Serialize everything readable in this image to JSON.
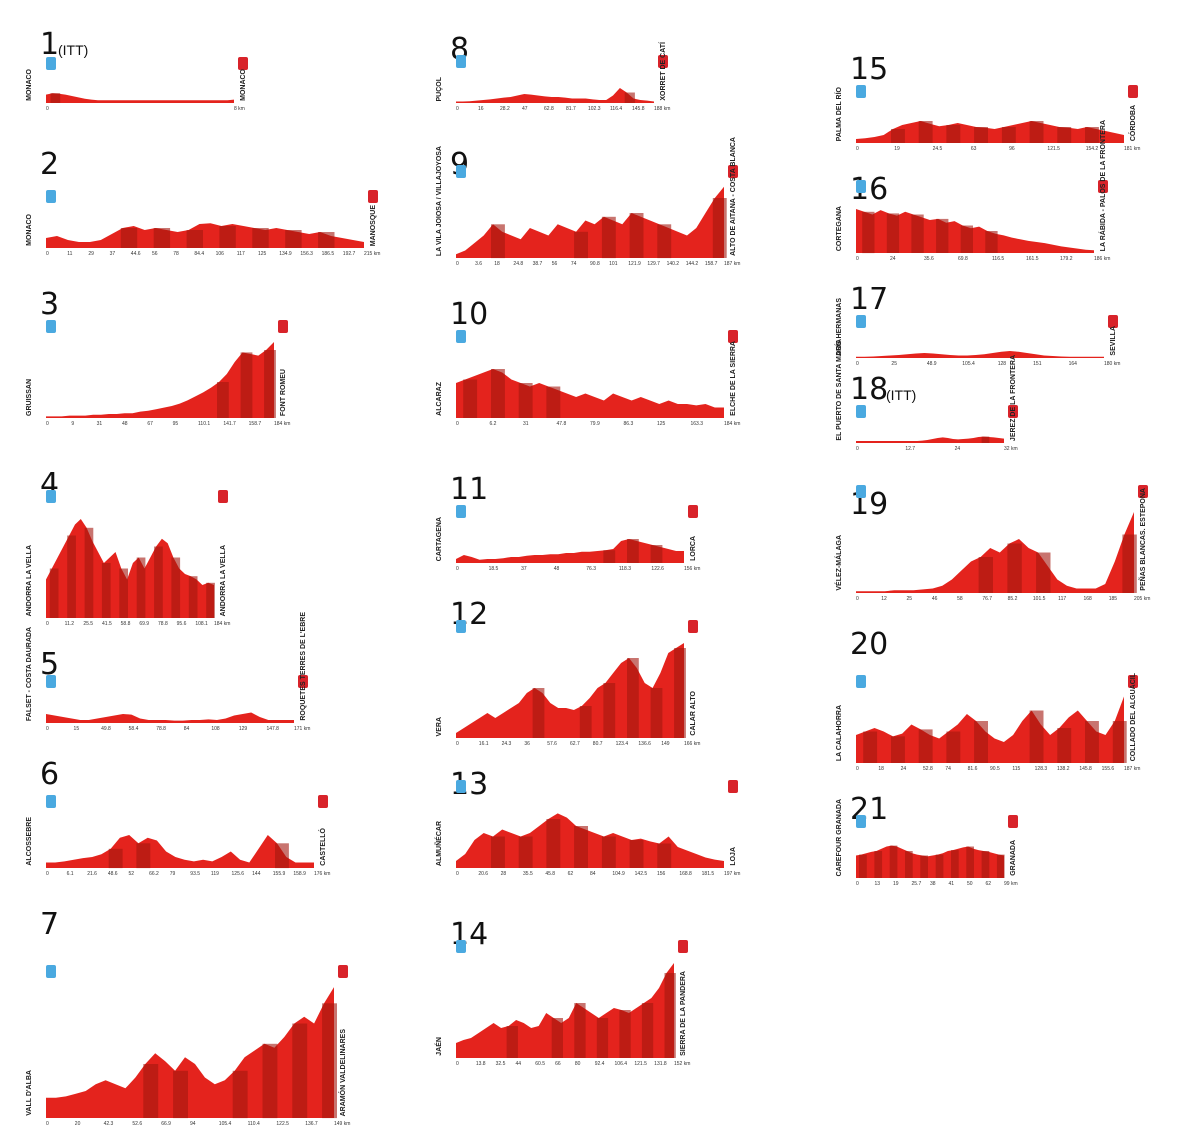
{
  "colors": {
    "fill": "#e4231d",
    "dark": "#a3170f",
    "start": "#4aa9e0",
    "finish": "#d8232a"
  },
  "stages": [
    {
      "num": "1",
      "itt": "(ITT)",
      "start": "MONACO",
      "finish": "MONACO",
      "kms": [
        "0",
        "8 km"
      ],
      "h": [
        0.3,
        0.35,
        0.33,
        0.3,
        0.25,
        0.2,
        0.15,
        0.12,
        0.1,
        0.1,
        0.1,
        0.1,
        0.1,
        0.1,
        0.1,
        0.1,
        0.1,
        0.1,
        0.1,
        0.1,
        0.1,
        0.1,
        0.1,
        0.1,
        0.1,
        0.1,
        0.1,
        0.1,
        0.1,
        0.12
      ]
    },
    {
      "num": "2",
      "start": "MONACO",
      "finish": "MANOSQUE",
      "kms": [
        "0",
        "11",
        "29",
        "37",
        "44.6",
        "56",
        "78",
        "84.4",
        "106",
        "117",
        "125",
        "134.9",
        "156.3",
        "186.5",
        "192.7",
        "215 km"
      ],
      "h": [
        0.25,
        0.3,
        0.2,
        0.15,
        0.15,
        0.2,
        0.35,
        0.5,
        0.55,
        0.45,
        0.5,
        0.45,
        0.4,
        0.45,
        0.6,
        0.62,
        0.55,
        0.6,
        0.55,
        0.5,
        0.45,
        0.5,
        0.45,
        0.4,
        0.35,
        0.4,
        0.3,
        0.25,
        0.2,
        0.15
      ]
    },
    {
      "num": "3",
      "start": "GRUISSAN",
      "finish": "FONT ROMEU",
      "kms": [
        "0",
        "9",
        "31",
        "48",
        "67",
        "95",
        "110.1",
        "141.7",
        "158.7",
        "184 km"
      ],
      "h": [
        0.02,
        0.02,
        0.02,
        0.03,
        0.03,
        0.03,
        0.04,
        0.04,
        0.05,
        0.05,
        0.06,
        0.06,
        0.08,
        0.09,
        0.11,
        0.13,
        0.15,
        0.18,
        0.22,
        0.27,
        0.32,
        0.38,
        0.45,
        0.55,
        0.7,
        0.82,
        0.8,
        0.78,
        0.85,
        0.95
      ]
    },
    {
      "num": "4",
      "start": "ANDORRA LA VELLA",
      "finish": "ANDORRA LA VELLA",
      "kms": [
        "0",
        "11.2",
        "25.5",
        "41.5",
        "58.8",
        "69.9",
        "78.8",
        "95.6",
        "108.1",
        "184 km"
      ],
      "h": [
        0.35,
        0.45,
        0.55,
        0.65,
        0.75,
        0.85,
        0.9,
        0.82,
        0.7,
        0.6,
        0.5,
        0.55,
        0.6,
        0.45,
        0.35,
        0.5,
        0.55,
        0.45,
        0.55,
        0.65,
        0.72,
        0.68,
        0.55,
        0.45,
        0.4,
        0.38,
        0.35,
        0.3,
        0.32,
        0.3
      ]
    },
    {
      "num": "5",
      "start": "FALSET - COSTA DAURADA",
      "finish": "ROQUETES TERRES DE L'EBRE",
      "kms": [
        "0",
        "15",
        "49.8",
        "58.4",
        "78.8",
        "84",
        "108",
        "129",
        "147.8",
        "171 km"
      ],
      "h": [
        0.3,
        0.25,
        0.2,
        0.15,
        0.1,
        0.1,
        0.15,
        0.2,
        0.25,
        0.3,
        0.28,
        0.15,
        0.1,
        0.1,
        0.1,
        0.08,
        0.08,
        0.1,
        0.1,
        0.12,
        0.1,
        0.15,
        0.25,
        0.3,
        0.35,
        0.2,
        0.1,
        0.1,
        0.1,
        0.1
      ]
    },
    {
      "num": "6",
      "start": "ALCOSSEBRE",
      "finish": "CASTELLÓ",
      "kms": [
        "0",
        "6.1",
        "21.6",
        "48.6",
        "52",
        "66.2",
        "79",
        "93.5",
        "119",
        "125.6",
        "144",
        "155.9",
        "158.9",
        "176 km"
      ],
      "h": [
        0.1,
        0.1,
        0.12,
        0.15,
        0.18,
        0.2,
        0.25,
        0.35,
        0.55,
        0.6,
        0.45,
        0.55,
        0.5,
        0.3,
        0.2,
        0.15,
        0.12,
        0.15,
        0.12,
        0.2,
        0.3,
        0.15,
        0.1,
        0.35,
        0.6,
        0.45,
        0.2,
        0.1,
        0.1,
        0.1
      ]
    },
    {
      "num": "7",
      "start": "VALL D'ALBA",
      "finish": "ARAMÓN VALDELINARES",
      "kms": [
        "0",
        "20",
        "42.3",
        "52.6",
        "66.9",
        "94",
        "105.4",
        "110.4",
        "122.5",
        "136.7",
        "149 km"
      ],
      "h": [
        0.15,
        0.15,
        0.16,
        0.18,
        0.2,
        0.25,
        0.28,
        0.25,
        0.22,
        0.3,
        0.4,
        0.48,
        0.42,
        0.35,
        0.45,
        0.4,
        0.3,
        0.25,
        0.28,
        0.35,
        0.45,
        0.5,
        0.55,
        0.52,
        0.6,
        0.7,
        0.75,
        0.7,
        0.85,
        0.97
      ]
    },
    {
      "num": "8",
      "start": "PUÇOL",
      "finish": "XORRET DE CATÍ",
      "kms": [
        "0",
        "16",
        "28.2",
        "47",
        "62.8",
        "81.7",
        "102.3",
        "116.4",
        "145.8",
        "188 km"
      ],
      "h": [
        0.05,
        0.05,
        0.06,
        0.08,
        0.1,
        0.12,
        0.15,
        0.18,
        0.2,
        0.25,
        0.3,
        0.28,
        0.25,
        0.22,
        0.2,
        0.2,
        0.18,
        0.15,
        0.15,
        0.15,
        0.12,
        0.1,
        0.1,
        0.25,
        0.5,
        0.35,
        0.15,
        0.1,
        0.08,
        0.05
      ]
    },
    {
      "num": "9",
      "start": "LA VILA JOIOSA / VILLAJOYOSA",
      "finish": "ALTO DE AITANA - COSTA BLANCA",
      "kms": [
        "0",
        "3.6",
        "18",
        "24.8",
        "38.7",
        "56",
        "74",
        "90.8",
        "101",
        "121.9",
        "129.7",
        "140.2",
        "144.2",
        "158.7",
        "187 km"
      ],
      "h": [
        0.05,
        0.1,
        0.2,
        0.3,
        0.45,
        0.35,
        0.3,
        0.25,
        0.4,
        0.35,
        0.3,
        0.45,
        0.4,
        0.35,
        0.5,
        0.45,
        0.55,
        0.5,
        0.45,
        0.6,
        0.55,
        0.5,
        0.45,
        0.4,
        0.35,
        0.3,
        0.4,
        0.6,
        0.8,
        0.95
      ]
    },
    {
      "num": "10",
      "start": "ALCARAZ",
      "finish": "ELCHE DE LA SIERRA",
      "kms": [
        "0",
        "6.2",
        "31",
        "47.8",
        "79.9",
        "86.3",
        "125",
        "163.3",
        "184 km"
      ],
      "h": [
        0.5,
        0.55,
        0.6,
        0.65,
        0.7,
        0.65,
        0.55,
        0.5,
        0.45,
        0.5,
        0.45,
        0.4,
        0.35,
        0.3,
        0.35,
        0.3,
        0.25,
        0.35,
        0.3,
        0.25,
        0.3,
        0.25,
        0.2,
        0.25,
        0.2,
        0.2,
        0.18,
        0.2,
        0.15,
        0.15
      ]
    },
    {
      "num": "11",
      "start": "CARTAGENA",
      "finish": "LORCA",
      "kms": [
        "0",
        "18.5",
        "37",
        "48",
        "76.3",
        "118.3",
        "122.6",
        "156 km"
      ],
      "h": [
        0.1,
        0.2,
        0.15,
        0.08,
        0.1,
        0.1,
        0.12,
        0.15,
        0.15,
        0.18,
        0.2,
        0.2,
        0.22,
        0.22,
        0.25,
        0.25,
        0.28,
        0.28,
        0.3,
        0.32,
        0.35,
        0.55,
        0.6,
        0.55,
        0.5,
        0.45,
        0.4,
        0.35,
        0.3,
        0.3
      ]
    },
    {
      "num": "12",
      "start": "VERA",
      "finish": "CALAR ALTO",
      "kms": [
        "0",
        "16.1",
        "24.3",
        "36",
        "57.6",
        "62.7",
        "80.7",
        "123.4",
        "136.6",
        "149",
        "166 km"
      ],
      "h": [
        0.05,
        0.1,
        0.15,
        0.2,
        0.25,
        0.2,
        0.25,
        0.3,
        0.35,
        0.45,
        0.5,
        0.45,
        0.35,
        0.3,
        0.3,
        0.28,
        0.32,
        0.4,
        0.5,
        0.55,
        0.65,
        0.75,
        0.8,
        0.7,
        0.55,
        0.5,
        0.65,
        0.85,
        0.9,
        0.95
      ]
    },
    {
      "num": "13",
      "start": "ALMUÑÉCAR",
      "finish": "LOJA",
      "kms": [
        "0",
        "20.6",
        "28",
        "35.5",
        "45.8",
        "62",
        "84",
        "104.9",
        "142.5",
        "156",
        "168.8",
        "181.5",
        "197 km"
      ],
      "h": [
        0.1,
        0.2,
        0.4,
        0.5,
        0.45,
        0.55,
        0.5,
        0.45,
        0.5,
        0.6,
        0.7,
        0.78,
        0.72,
        0.6,
        0.55,
        0.5,
        0.45,
        0.5,
        0.45,
        0.4,
        0.42,
        0.38,
        0.35,
        0.45,
        0.3,
        0.25,
        0.2,
        0.15,
        0.12,
        0.1
      ]
    },
    {
      "num": "14",
      "start": "JAÉN",
      "finish": "SIERRA DE LA PANDERA",
      "kms": [
        "0",
        "13.8",
        "32.5",
        "44",
        "60.5",
        "66",
        "80",
        "92.4",
        "106.4",
        "121.5",
        "131.8",
        "152 km"
      ],
      "h": [
        0.15,
        0.18,
        0.2,
        0.25,
        0.3,
        0.35,
        0.3,
        0.32,
        0.38,
        0.35,
        0.3,
        0.32,
        0.45,
        0.4,
        0.35,
        0.4,
        0.55,
        0.5,
        0.45,
        0.4,
        0.45,
        0.5,
        0.48,
        0.45,
        0.5,
        0.55,
        0.6,
        0.7,
        0.85,
        0.95
      ]
    },
    {
      "num": "15",
      "start": "PALMA DEL RÍO",
      "finish": "CÓRDOBA",
      "kms": [
        "0",
        "19",
        "24.5",
        "63",
        "96",
        "121.5",
        "154.2",
        "181 km"
      ],
      "h": [
        0.1,
        0.12,
        0.15,
        0.2,
        0.35,
        0.45,
        0.5,
        0.55,
        0.48,
        0.42,
        0.45,
        0.5,
        0.45,
        0.4,
        0.38,
        0.35,
        0.4,
        0.45,
        0.5,
        0.55,
        0.5,
        0.45,
        0.4,
        0.38,
        0.35,
        0.4,
        0.35,
        0.3,
        0.25,
        0.2
      ]
    },
    {
      "num": "16",
      "start": "CORTEGANA",
      "finish": "LA RÁBIDA - PALOS DE LA FRONTERA",
      "kms": [
        "0",
        "24",
        "35.6",
        "69.8",
        "116.5",
        "161.5",
        "179.2",
        "186 km"
      ],
      "h": [
        0.8,
        0.75,
        0.7,
        0.78,
        0.72,
        0.68,
        0.75,
        0.7,
        0.65,
        0.6,
        0.62,
        0.55,
        0.58,
        0.5,
        0.45,
        0.48,
        0.4,
        0.35,
        0.32,
        0.28,
        0.25,
        0.22,
        0.2,
        0.18,
        0.15,
        0.12,
        0.1,
        0.08,
        0.06,
        0.05
      ]
    },
    {
      "num": "17",
      "start": "DOS HERMANAS",
      "finish": "SEVILLA",
      "kms": [
        "0",
        "25",
        "48.9",
        "105.4",
        "128",
        "151",
        "164",
        "180 km"
      ],
      "h": [
        0.05,
        0.05,
        0.06,
        0.08,
        0.1,
        0.12,
        0.15,
        0.18,
        0.2,
        0.18,
        0.15,
        0.12,
        0.1,
        0.1,
        0.12,
        0.15,
        0.2,
        0.25,
        0.28,
        0.25,
        0.2,
        0.15,
        0.1,
        0.08,
        0.06,
        0.05,
        0.05,
        0.05,
        0.05,
        0.05
      ]
    },
    {
      "num": "18",
      "itt": "(ITT)",
      "start": "EL PUERTO DE SANTA MARÍA",
      "finish": "JEREZ DE LA FRONTERA",
      "kms": [
        "0",
        "12.7",
        "24",
        "32 km"
      ],
      "h": [
        0.1,
        0.1,
        0.1,
        0.1,
        0.1,
        0.1,
        0.1,
        0.1,
        0.1,
        0.1,
        0.1,
        0.1,
        0.1,
        0.12,
        0.15,
        0.2,
        0.25,
        0.28,
        0.25,
        0.2,
        0.18,
        0.2,
        0.22,
        0.25,
        0.3,
        0.32,
        0.3,
        0.28,
        0.25,
        0.22
      ]
    },
    {
      "num": "19",
      "start": "VÉLEZ-MÁLAGA",
      "finish": "PEÑAS BLANCAS. ESTEPONA",
      "kms": [
        "0",
        "12",
        "25",
        "46",
        "58",
        "76.7",
        "85.2",
        "101.5",
        "117",
        "168",
        "185",
        "205 km"
      ],
      "h": [
        0.02,
        0.02,
        0.02,
        0.02,
        0.03,
        0.03,
        0.03,
        0.04,
        0.05,
        0.08,
        0.15,
        0.25,
        0.35,
        0.4,
        0.5,
        0.45,
        0.55,
        0.6,
        0.5,
        0.45,
        0.3,
        0.15,
        0.08,
        0.05,
        0.05,
        0.05,
        0.1,
        0.35,
        0.65,
        0.9
      ]
    },
    {
      "num": "20",
      "start": "LA CALAHORRA",
      "finish": "COLLADO DEL ALGUACIL",
      "kms": [
        "0",
        "18",
        "24",
        "52.8",
        "74",
        "81.6",
        "90.5",
        "115",
        "128.3",
        "138.2",
        "145.8",
        "155.6",
        "187 km"
      ],
      "h": [
        0.4,
        0.45,
        0.5,
        0.45,
        0.38,
        0.42,
        0.55,
        0.48,
        0.4,
        0.35,
        0.45,
        0.55,
        0.7,
        0.6,
        0.45,
        0.35,
        0.3,
        0.4,
        0.6,
        0.75,
        0.55,
        0.4,
        0.5,
        0.65,
        0.75,
        0.6,
        0.45,
        0.4,
        0.6,
        0.95
      ]
    },
    {
      "num": "21",
      "start": "CAREFOUR GRANADA",
      "finish": "GRANADA",
      "kms": [
        "0",
        "13",
        "19",
        "25.7",
        "38",
        "41",
        "50",
        "62",
        "99 km"
      ],
      "h": [
        0.5,
        0.52,
        0.55,
        0.58,
        0.6,
        0.65,
        0.7,
        0.72,
        0.7,
        0.65,
        0.6,
        0.55,
        0.52,
        0.5,
        0.48,
        0.5,
        0.52,
        0.55,
        0.6,
        0.62,
        0.65,
        0.68,
        0.7,
        0.65,
        0.62,
        0.6,
        0.58,
        0.55,
        0.52,
        0.5
      ]
    }
  ]
}
